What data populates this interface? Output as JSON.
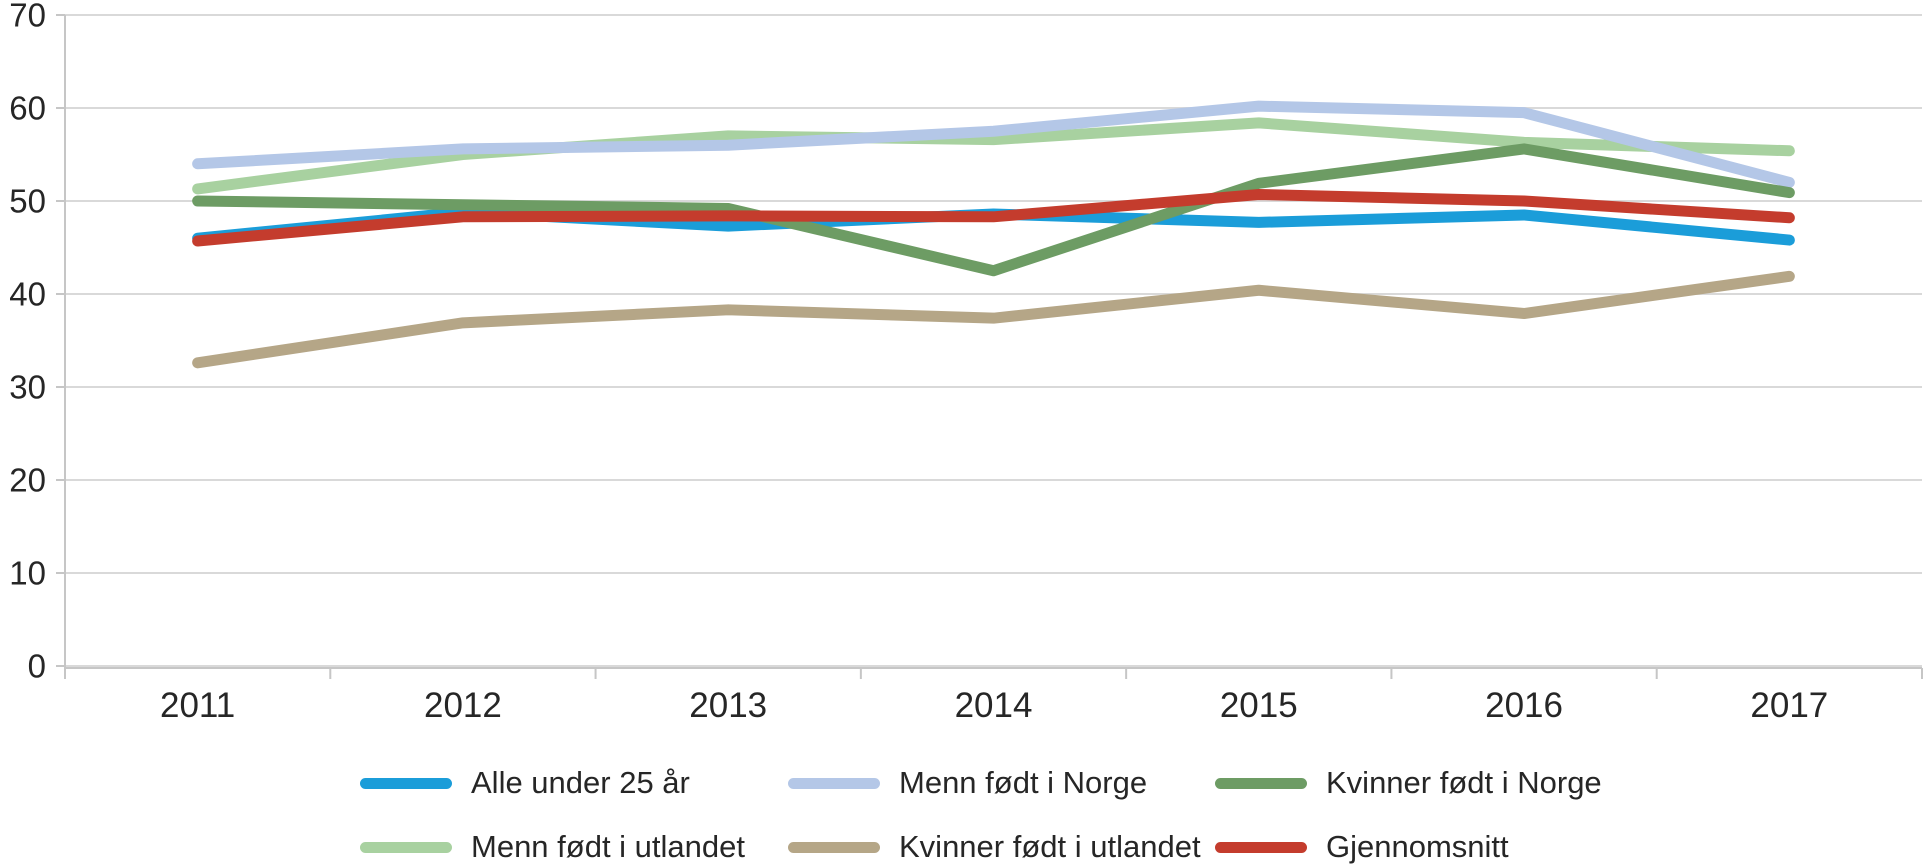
{
  "chart_data": {
    "type": "line",
    "title": "",
    "xlabel": "",
    "ylabel": "",
    "categories": [
      "2011",
      "2012",
      "2013",
      "2014",
      "2015",
      "2016",
      "2017"
    ],
    "y_ticks": [
      "0",
      "10",
      "20",
      "30",
      "40",
      "50",
      "60",
      "70"
    ],
    "ylim": [
      0,
      70
    ],
    "grid": "horizontal",
    "legend_position": "bottom",
    "series": [
      {
        "name": "Alle under 25 år",
        "color": "#1b9dd9",
        "values": [
          46.0,
          48.8,
          47.3,
          48.6,
          47.7,
          48.5,
          45.8
        ]
      },
      {
        "name": "Menn født i Norge",
        "color": "#b4c7e7",
        "values": [
          54.0,
          55.6,
          56.0,
          57.5,
          60.2,
          59.5,
          52.0
        ]
      },
      {
        "name": "Kvinner født i Norge",
        "color": "#6d9c64",
        "values": [
          50.0,
          49.6,
          49.2,
          42.5,
          51.9,
          55.6,
          50.9
        ]
      },
      {
        "name": "Menn født i utlandet",
        "color": "#a8d1a0",
        "values": [
          51.3,
          55.0,
          57.0,
          56.6,
          58.4,
          56.3,
          55.4
        ]
      },
      {
        "name": "Kvinner født i utlandet",
        "color": "#b5a687",
        "values": [
          32.6,
          36.9,
          38.3,
          37.4,
          40.4,
          37.9,
          41.9
        ]
      },
      {
        "name": "Gjennomsnitt",
        "color": "#c43c2d",
        "values": [
          45.7,
          48.3,
          48.4,
          48.3,
          50.7,
          50.0,
          48.2
        ]
      }
    ],
    "colors": {
      "gridline": "#d9d9d9",
      "axis_line": "#c6c6c6",
      "tick_label": "#262626",
      "legend_text": "#262626",
      "background": "#ffffff"
    }
  }
}
